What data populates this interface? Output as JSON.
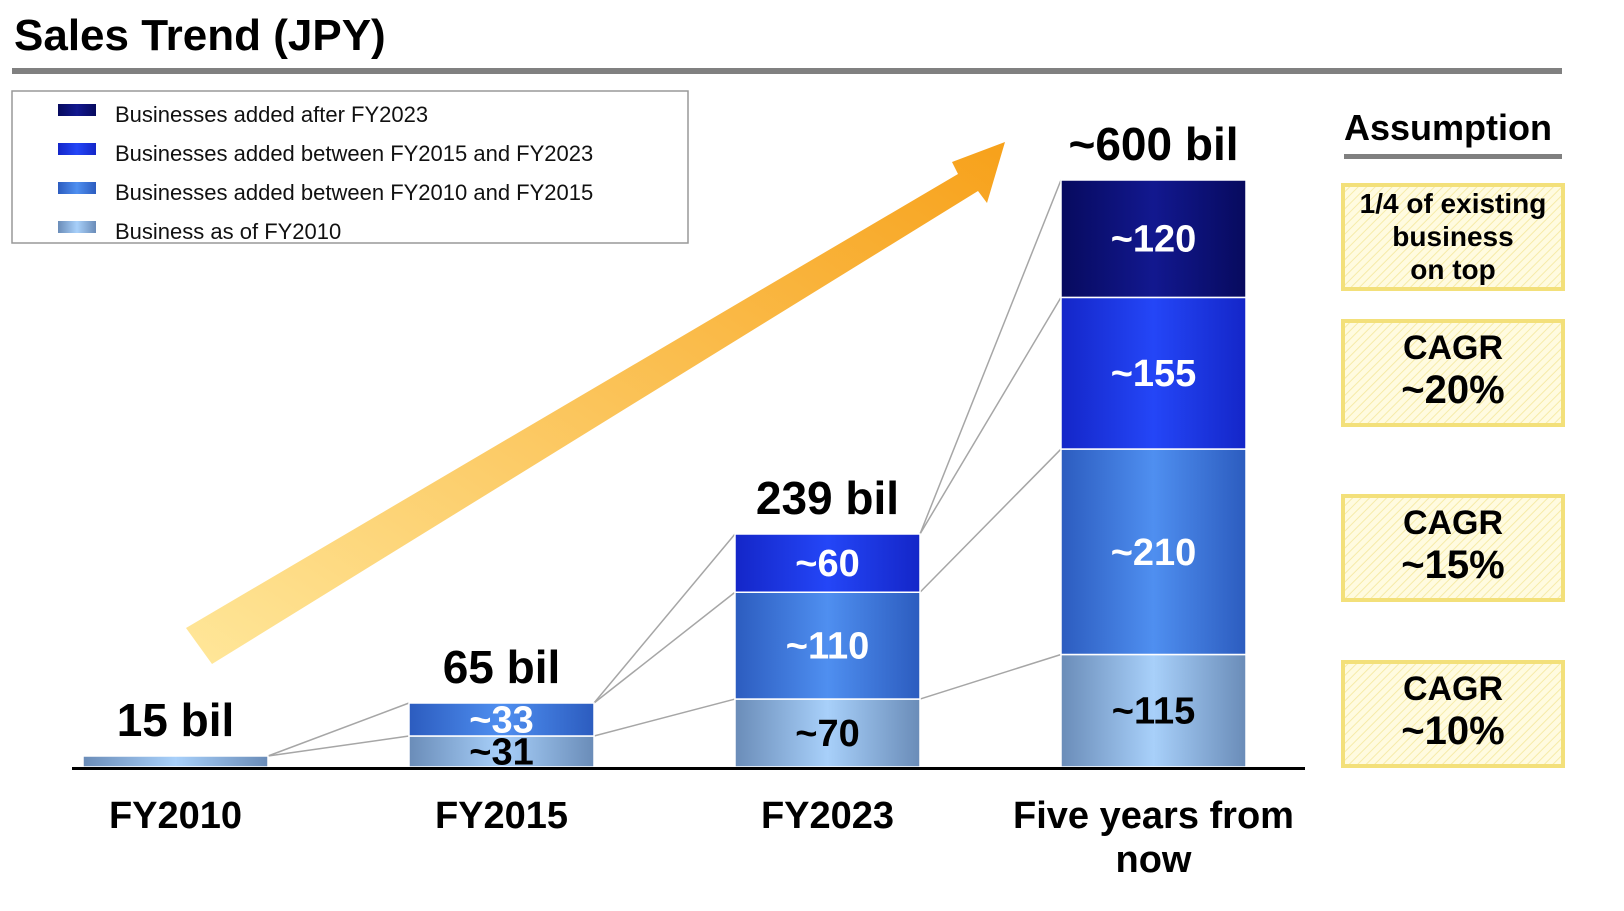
{
  "chart_data": {
    "type": "bar",
    "stacked": true,
    "title": "Sales Trend (JPY)",
    "categories": [
      "FY2010",
      "FY2015",
      "FY2023",
      "Five years from now"
    ],
    "totals": [
      "15 bil",
      "65 bil",
      "239 bil",
      "~600 bil"
    ],
    "series": [
      {
        "name": "Business as of FY2010",
        "values": [
          15,
          31,
          70,
          115
        ],
        "labels": [
          "",
          "~31",
          "~70",
          "~115"
        ],
        "color": "#6e9cd8"
      },
      {
        "name": "Businesses added between FY2010 and FY2015",
        "values": [
          0,
          33,
          110,
          210
        ],
        "labels": [
          "",
          "~33",
          "~110",
          "~210"
        ],
        "color": "#3c74d8"
      },
      {
        "name": "Businesses added between FY2015 and FY2023",
        "values": [
          0,
          0,
          60,
          155
        ],
        "labels": [
          "",
          "",
          "~60",
          "~155"
        ],
        "color": "#1a32e0"
      },
      {
        "name": "Businesses added after FY2023",
        "values": [
          0,
          0,
          0,
          120
        ],
        "labels": [
          "",
          "",
          "",
          "~120"
        ],
        "color": "#0b0f7a"
      }
    ],
    "legend": {
      "placement": "top-left",
      "order": [
        3,
        2,
        1,
        0
      ]
    },
    "assumption": {
      "heading": "Assumption",
      "boxes": [
        {
          "lines": [
            "1/4 of existing",
            "business",
            "on top"
          ]
        },
        {
          "lines": [
            "CAGR",
            "~20%"
          ]
        },
        {
          "lines": [
            "CAGR",
            "~15%"
          ]
        },
        {
          "lines": [
            "CAGR",
            "~10%"
          ]
        }
      ]
    },
    "colors": {
      "accent_line": "#808080",
      "arrow": "#f7a11a",
      "box_fill": "#fff9d6",
      "box_border": "#f3e07a"
    }
  }
}
